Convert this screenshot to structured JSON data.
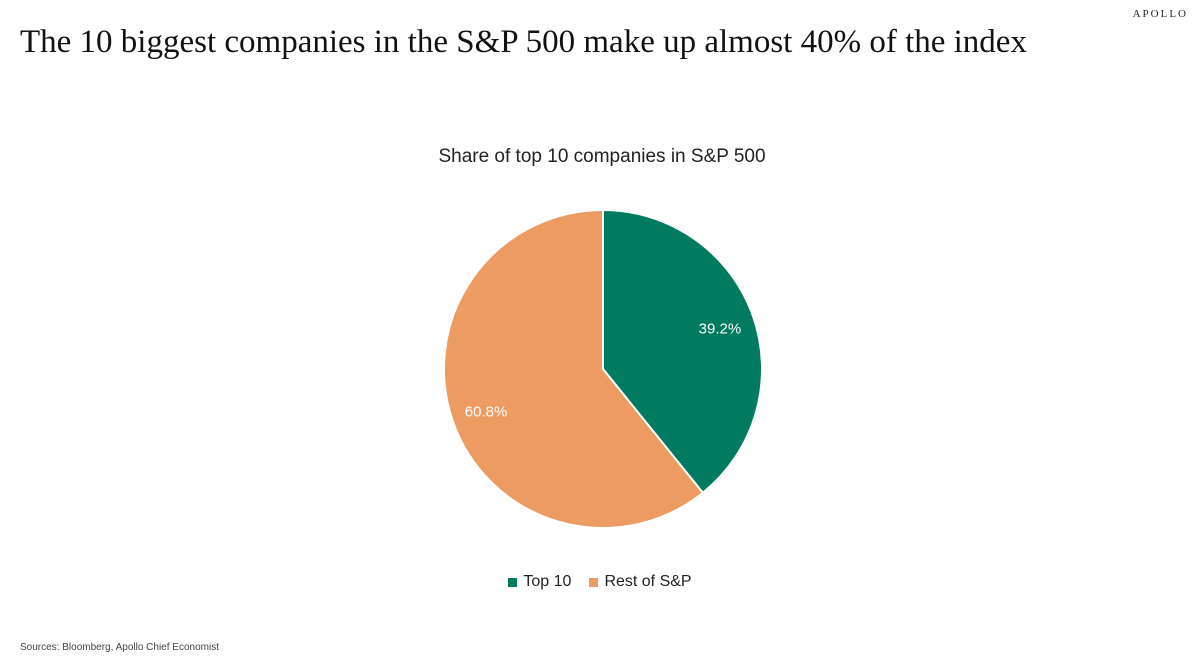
{
  "brand": "APOLLO",
  "headline": "The 10 biggest companies in the S&P 500 make up almost 40% of the index",
  "source": "Sources: Bloomberg, Apollo Chief Economist",
  "chart_data": {
    "type": "pie",
    "title": "Share of top 10 companies in S&P 500",
    "slices": [
      {
        "name": "Top 10",
        "value": 39.2,
        "label": "39.2%",
        "color": "#007B5F"
      },
      {
        "name": "Rest of S&P",
        "value": 60.8,
        "label": "60.8%",
        "color": "#EC9C62"
      }
    ],
    "legend_position": "bottom",
    "start_angle": "12 o'clock, clockwise"
  }
}
